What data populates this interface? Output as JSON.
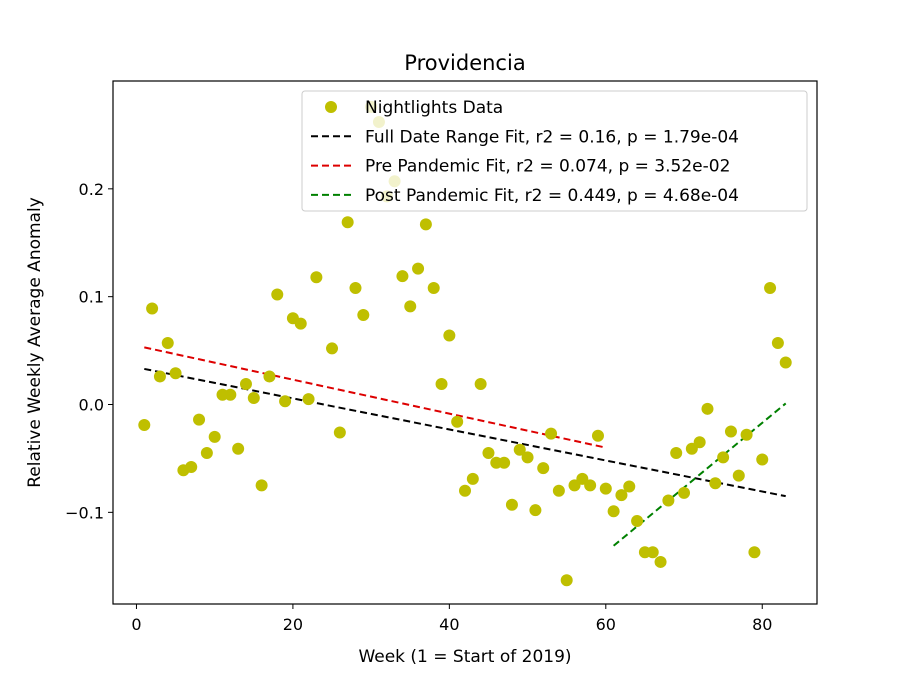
{
  "chart_data": {
    "type": "scatter",
    "title": "Providencia",
    "xlabel": "Week (1 = Start of 2019)",
    "ylabel": "Relative Weekly Average Anomaly",
    "xlim": [
      -3,
      87
    ],
    "ylim": [
      -0.185,
      0.3
    ],
    "xticks": [
      0,
      20,
      40,
      60,
      80
    ],
    "xtick_labels": [
      "0",
      "20",
      "40",
      "60",
      "80"
    ],
    "yticks": [
      -0.1,
      0.0,
      0.1,
      0.2
    ],
    "ytick_labels": [
      "−0.1",
      "0.0",
      "0.1",
      "0.2"
    ],
    "grid": false,
    "legend_position": "top-right",
    "series": [
      {
        "name": "Nightlights Data",
        "kind": "scatter",
        "color": "#bfbf00",
        "points": [
          [
            1,
            -0.019
          ],
          [
            2,
            0.089
          ],
          [
            3,
            0.026
          ],
          [
            4,
            0.057
          ],
          [
            5,
            0.029
          ],
          [
            6,
            -0.061
          ],
          [
            7,
            -0.058
          ],
          [
            8,
            -0.014
          ],
          [
            9,
            -0.045
          ],
          [
            10,
            -0.03
          ],
          [
            11,
            0.009
          ],
          [
            12,
            0.009
          ],
          [
            13,
            -0.041
          ],
          [
            14,
            0.019
          ],
          [
            15,
            0.006
          ],
          [
            16,
            -0.075
          ],
          [
            17,
            0.026
          ],
          [
            18,
            0.102
          ],
          [
            19,
            0.003
          ],
          [
            20,
            0.08
          ],
          [
            21,
            0.075
          ],
          [
            22,
            0.005
          ],
          [
            23,
            0.118
          ],
          [
            25,
            0.052
          ],
          [
            26,
            -0.026
          ],
          [
            27,
            0.169
          ],
          [
            28,
            0.108
          ],
          [
            29,
            0.083
          ],
          [
            30,
            0.276
          ],
          [
            31,
            0.262
          ],
          [
            32,
            0.193
          ],
          [
            33,
            0.207
          ],
          [
            34,
            0.119
          ],
          [
            35,
            0.091
          ],
          [
            36,
            0.126
          ],
          [
            37,
            0.167
          ],
          [
            38,
            0.108
          ],
          [
            39,
            0.019
          ],
          [
            40,
            0.064
          ],
          [
            41,
            -0.016
          ],
          [
            42,
            -0.08
          ],
          [
            43,
            -0.069
          ],
          [
            44,
            0.019
          ],
          [
            45,
            -0.045
          ],
          [
            46,
            -0.054
          ],
          [
            47,
            -0.054
          ],
          [
            48,
            -0.093
          ],
          [
            49,
            -0.042
          ],
          [
            50,
            -0.049
          ],
          [
            51,
            -0.098
          ],
          [
            52,
            -0.059
          ],
          [
            53,
            -0.027
          ],
          [
            54,
            -0.08
          ],
          [
            55,
            -0.163
          ],
          [
            56,
            -0.075
          ],
          [
            57,
            -0.069
          ],
          [
            58,
            -0.075
          ],
          [
            59,
            -0.029
          ],
          [
            60,
            -0.078
          ],
          [
            61,
            -0.099
          ],
          [
            62,
            -0.084
          ],
          [
            63,
            -0.076
          ],
          [
            64,
            -0.108
          ],
          [
            65,
            -0.137
          ],
          [
            66,
            -0.137
          ],
          [
            67,
            -0.146
          ],
          [
            68,
            -0.089
          ],
          [
            69,
            -0.045
          ],
          [
            70,
            -0.082
          ],
          [
            71,
            -0.041
          ],
          [
            72,
            -0.035
          ],
          [
            73,
            -0.004
          ],
          [
            74,
            -0.073
          ],
          [
            75,
            -0.049
          ],
          [
            76,
            -0.025
          ],
          [
            77,
            -0.066
          ],
          [
            78,
            -0.028
          ],
          [
            79,
            -0.137
          ],
          [
            80,
            -0.051
          ],
          [
            81,
            0.108
          ],
          [
            82,
            0.057
          ],
          [
            83,
            0.039
          ]
        ]
      },
      {
        "name": "Full Date Range Fit, r2 = 0.16, p = 1.79e-04",
        "kind": "line",
        "color": "#000000",
        "points": [
          [
            1,
            0.033
          ],
          [
            83,
            -0.085
          ]
        ]
      },
      {
        "name": "Pre Pandemic Fit, r2 = 0.074, p = 3.52e-02",
        "kind": "line",
        "color": "#dd0000",
        "points": [
          [
            1,
            0.053
          ],
          [
            60,
            -0.04
          ]
        ]
      },
      {
        "name": "Post Pandemic Fit, r2 = 0.449, p = 4.68e-04",
        "kind": "line",
        "color": "#008000",
        "points": [
          [
            61,
            -0.131
          ],
          [
            83,
            0.001
          ]
        ]
      }
    ]
  }
}
